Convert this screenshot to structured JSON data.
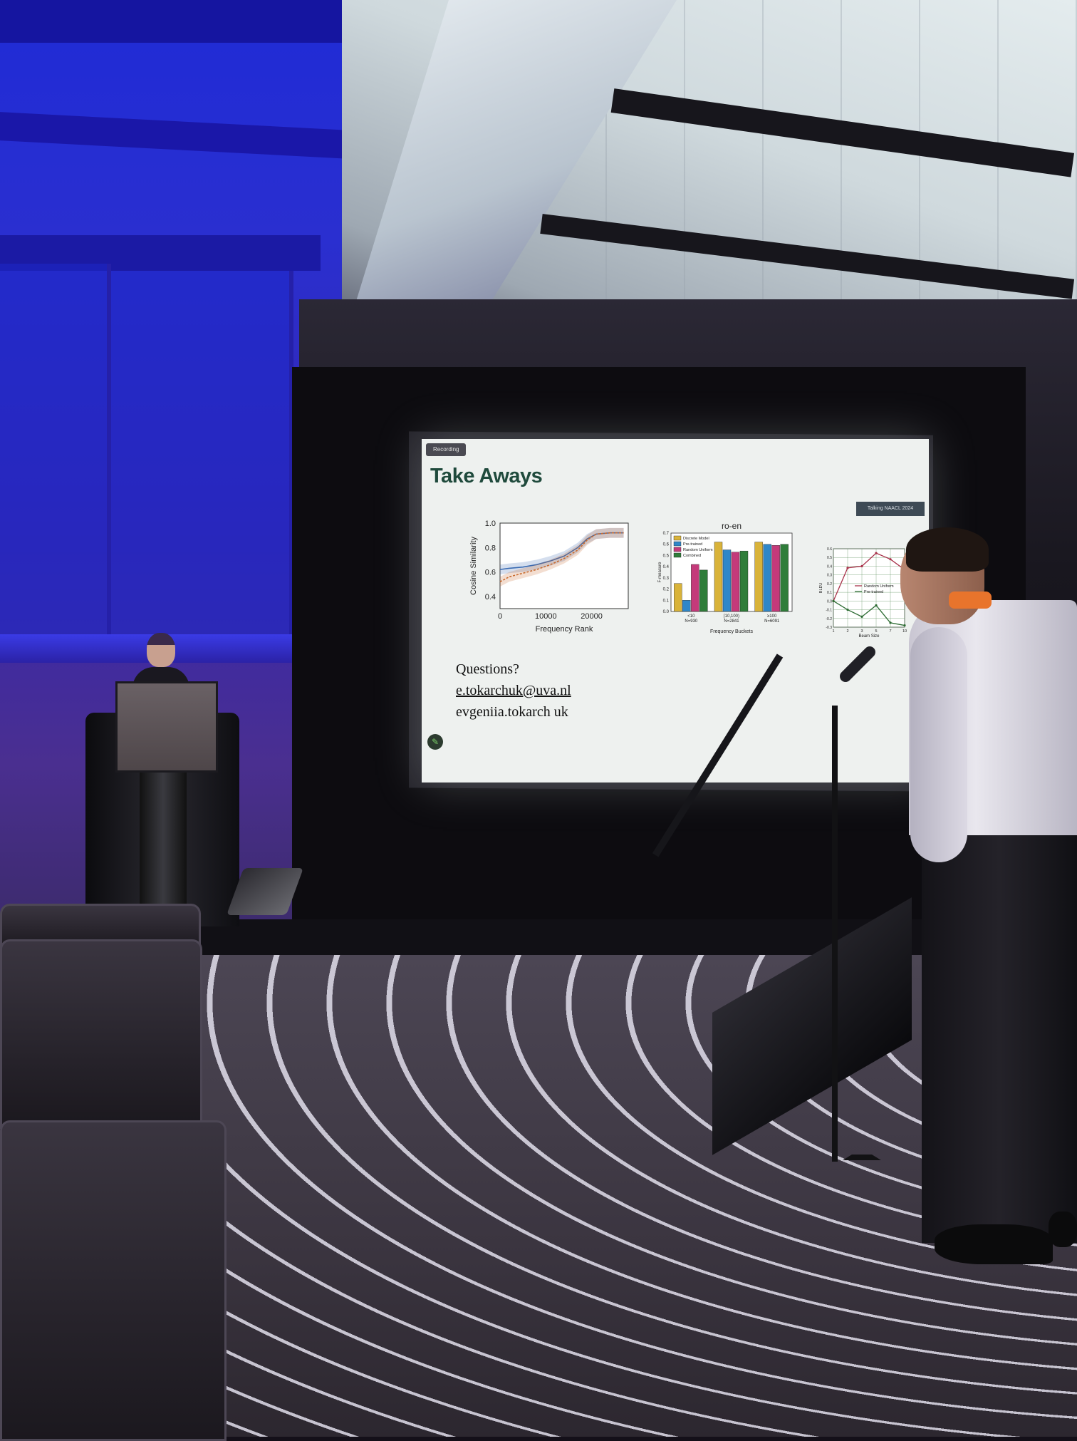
{
  "slide": {
    "recording_badge": "Recording",
    "title": "Take Aways",
    "conference_tag": "Talking NAACL 2024",
    "questions_label": "Questions?",
    "email_primary": "e.tokarchuk@uva.nl",
    "email_secondary": "evgeniia.tokarch uk",
    "pen_icon": "pen-icon"
  },
  "chart_data": [
    {
      "type": "line",
      "title": "",
      "xlabel": "Frequency Rank",
      "ylabel": "Cosine Similarity",
      "x_ticks": [
        "0",
        "10000",
        "20000"
      ],
      "y_ticks": [
        "0.4",
        "0.6",
        "0.8",
        "1.0"
      ],
      "xlim": [
        0,
        28000
      ],
      "ylim": [
        0.3,
        1.0
      ],
      "series": [
        {
          "x": [
            0,
            2000,
            5000,
            8000,
            11000,
            14000,
            17000,
            19000,
            21000,
            24000,
            27000
          ],
          "y": [
            0.62,
            0.63,
            0.64,
            0.66,
            0.69,
            0.73,
            0.8,
            0.87,
            0.91,
            0.92,
            0.92
          ],
          "color": "#3a6bb3"
        },
        {
          "x": [
            0,
            2000,
            5000,
            8000,
            11000,
            14000,
            17000,
            19000,
            21000,
            24000,
            27000
          ],
          "y": [
            0.52,
            0.56,
            0.59,
            0.62,
            0.66,
            0.71,
            0.78,
            0.86,
            0.91,
            0.92,
            0.92
          ],
          "color": "#c86a2e"
        }
      ]
    },
    {
      "type": "bar",
      "title": "ro-en",
      "xlabel": "Frequency Buckets",
      "ylabel": "F-measure",
      "categories": [
        "<10\nN=930",
        "[10,100)\nN=2841",
        "≥100\nN=6091"
      ],
      "y_ticks": [
        "0.0",
        "0.1",
        "0.2",
        "0.3",
        "0.4",
        "0.5",
        "0.6",
        "0.7"
      ],
      "ylim": [
        0,
        0.7
      ],
      "legend_position": "top-left",
      "series": [
        {
          "name": "Discrete Model",
          "color": "#d9b33a",
          "values": [
            0.25,
            0.62,
            0.62
          ]
        },
        {
          "name": "Pre-trained",
          "color": "#2f87c8",
          "values": [
            0.1,
            0.55,
            0.6
          ]
        },
        {
          "name": "Random Uniform",
          "color": "#c43a7a",
          "values": [
            0.42,
            0.53,
            0.59
          ]
        },
        {
          "name": "Combined",
          "color": "#2f7d3a",
          "values": [
            0.37,
            0.54,
            0.6
          ]
        }
      ]
    },
    {
      "type": "line",
      "title": "",
      "xlabel": "Beam Size",
      "ylabel": "BLEU",
      "x_ticks": [
        "1",
        "2",
        "3",
        "5",
        "7",
        "10"
      ],
      "y_ticks": [
        "-0.3",
        "-0.2",
        "-0.1",
        "0.0",
        "0.1",
        "0.2",
        "0.3",
        "0.4",
        "0.5",
        "0.6"
      ],
      "ylim": [
        -0.3,
        0.6
      ],
      "legend_position": "right",
      "series": [
        {
          "name": "Random Uniform",
          "color": "#a8324a",
          "x": [
            1,
            2,
            3,
            5,
            7,
            10
          ],
          "y": [
            0.0,
            0.38,
            0.4,
            0.55,
            0.48,
            0.36
          ]
        },
        {
          "name": "Pre-trained",
          "color": "#2c6b32",
          "x": [
            1,
            2,
            3,
            5,
            7,
            10
          ],
          "y": [
            0.0,
            -0.1,
            -0.18,
            -0.05,
            -0.25,
            -0.28
          ]
        }
      ]
    }
  ]
}
